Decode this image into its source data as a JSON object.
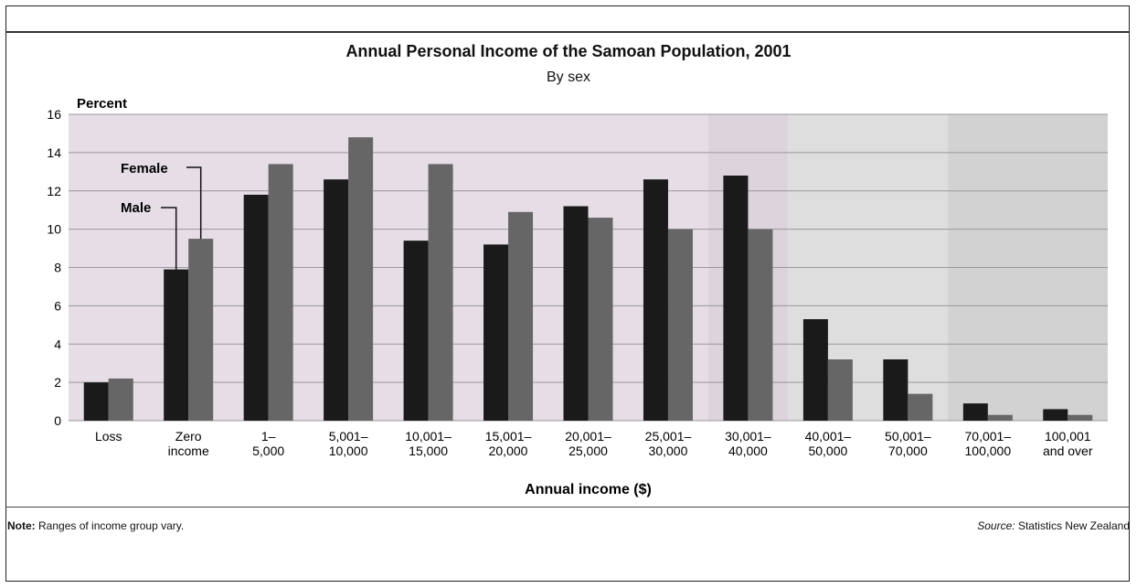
{
  "header": {
    "title": "Annual Personal Income of the Samoan Population, 2001",
    "subtitle": "By sex"
  },
  "footer": {
    "note_label": "Note:",
    "note_text": " Ranges of income group vary.",
    "source_label": "Source:",
    "source_text": " Statistics New Zealand"
  },
  "colors": {
    "male": "#1a1a1a",
    "female": "#666666",
    "band_purple": "#e6dde6",
    "band_purple_dark": "#dcd3dc",
    "band_grey": "#dedede",
    "band_grey_dark": "#d2d2d2",
    "grid": "#999999"
  },
  "chart_data": {
    "type": "bar",
    "title": "Annual Personal Income of the Samoan Population, 2001",
    "subtitle": "By sex",
    "ylabel": "Percent",
    "xlabel": "Annual income ($)",
    "ylim": [
      0,
      16
    ],
    "yticks": [
      "0",
      "2",
      "4",
      "6",
      "8",
      "10",
      "12",
      "14",
      "16"
    ],
    "grid": true,
    "categories": [
      [
        "Loss"
      ],
      [
        "Zero",
        "income"
      ],
      [
        "1–",
        "5,000"
      ],
      [
        "5,001–",
        "10,000"
      ],
      [
        "10,001–",
        "15,000"
      ],
      [
        "15,001–",
        "20,000"
      ],
      [
        "20,001–",
        "25,000"
      ],
      [
        "25,001–",
        "30,000"
      ],
      [
        "30,001–",
        "40,000"
      ],
      [
        "40,001–",
        "50,000"
      ],
      [
        "50,001–",
        "70,000"
      ],
      [
        "70,001–",
        "100,000"
      ],
      [
        "100,001",
        "and over"
      ]
    ],
    "series": [
      {
        "name": "Male",
        "values": [
          2.0,
          7.9,
          11.8,
          12.6,
          9.4,
          9.2,
          11.2,
          12.6,
          12.8,
          5.3,
          3.2,
          0.9,
          0.6
        ]
      },
      {
        "name": "Female",
        "values": [
          2.2,
          9.5,
          13.4,
          14.8,
          13.4,
          10.9,
          10.6,
          10.0,
          10.0,
          3.2,
          1.4,
          0.3,
          0.3
        ]
      }
    ]
  }
}
